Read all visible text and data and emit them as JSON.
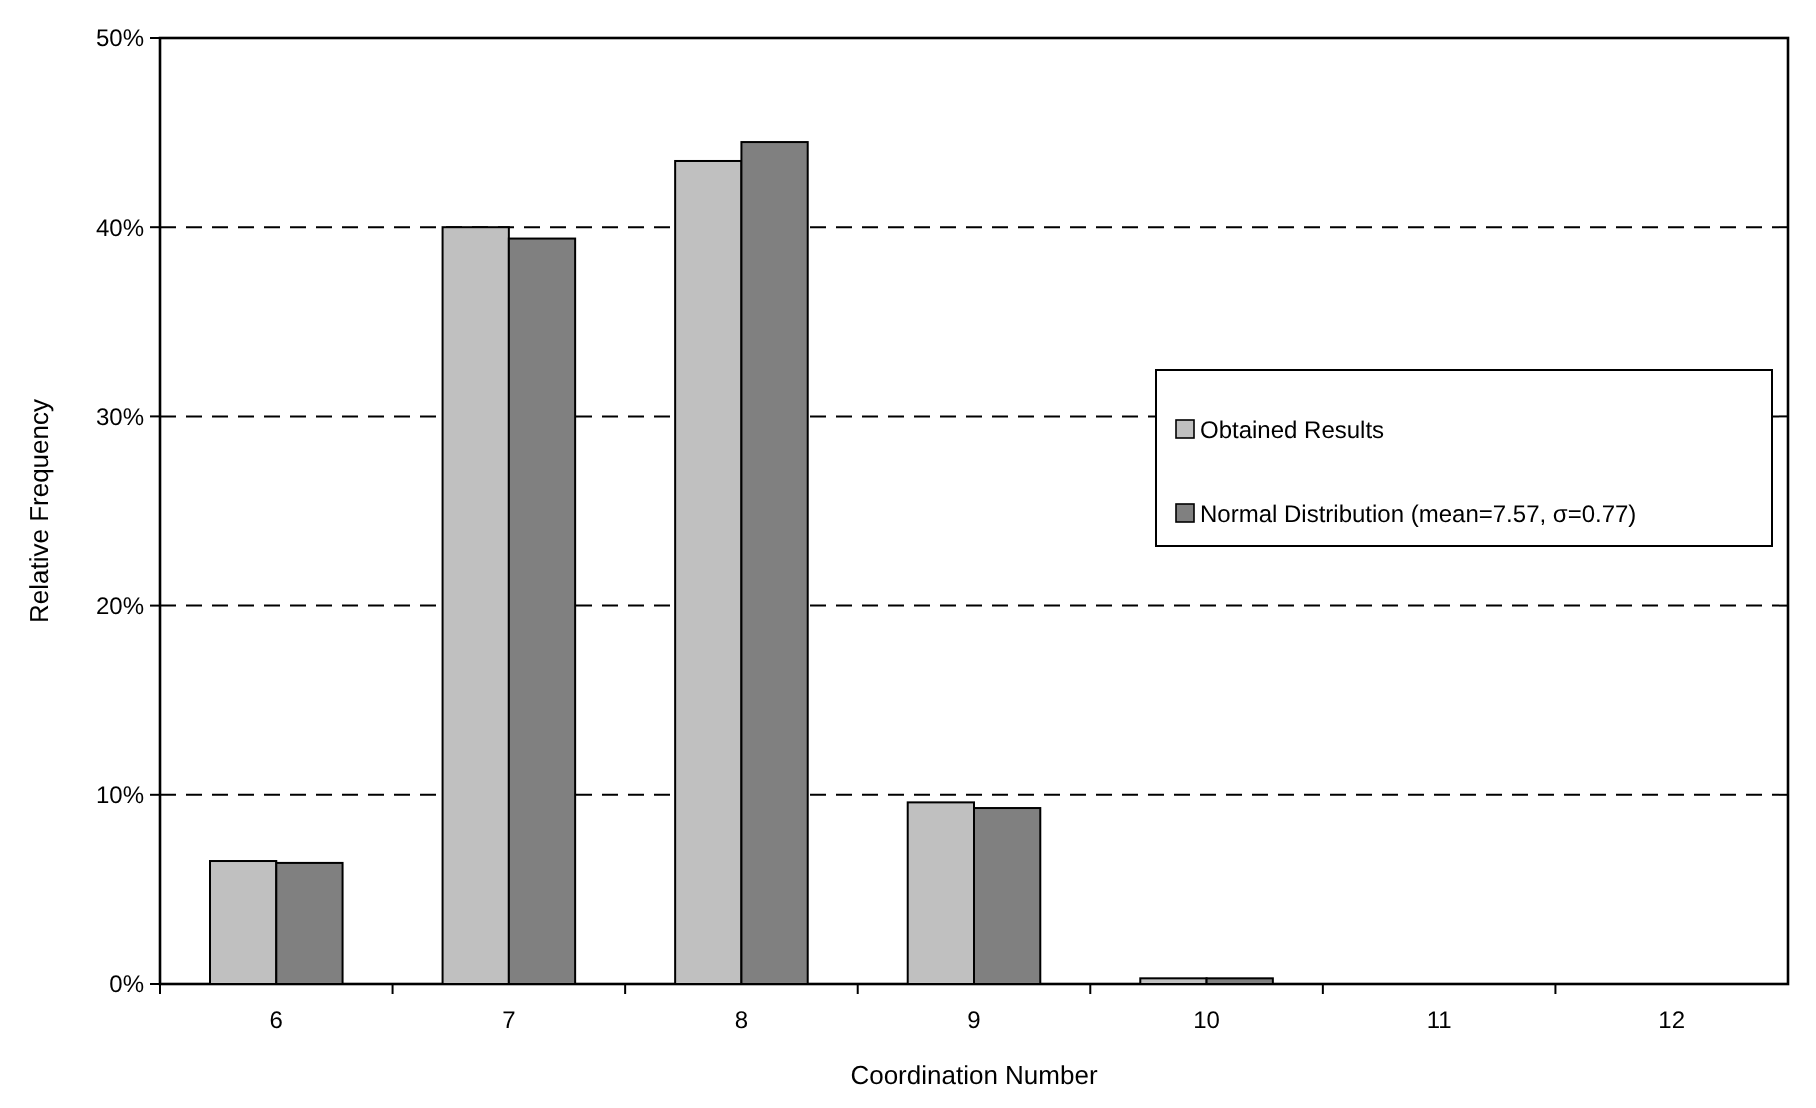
{
  "chart_data": {
    "type": "bar",
    "xlabel": "Coordination Number",
    "ylabel": "Relative Frequency",
    "categories": [
      "6",
      "7",
      "8",
      "9",
      "10",
      "11",
      "12"
    ],
    "series": [
      {
        "name": "Obtained Results",
        "color": "#c0c0c0",
        "values": [
          6.5,
          40.0,
          43.5,
          9.6,
          0.3,
          0,
          0
        ]
      },
      {
        "name": "Normal Distribution (mean=7.57, σ=0.77)",
        "color": "#808080",
        "values": [
          6.4,
          39.4,
          44.5,
          9.3,
          0.3,
          0,
          0
        ]
      }
    ],
    "ylim": [
      0,
      50
    ],
    "yticks": [
      {
        "value": 0,
        "label": "0%"
      },
      {
        "value": 10,
        "label": "10%"
      },
      {
        "value": 20,
        "label": "20%"
      },
      {
        "value": 30,
        "label": "30%"
      },
      {
        "value": 40,
        "label": "40%"
      },
      {
        "value": 50,
        "label": "50%"
      }
    ],
    "grid": "y",
    "legend": "right"
  }
}
